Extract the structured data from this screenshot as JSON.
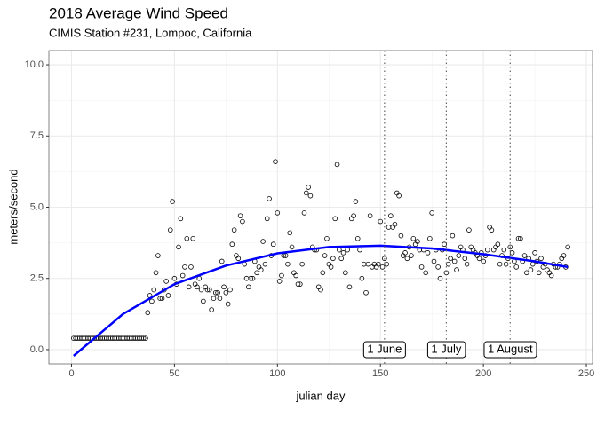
{
  "chart_data": {
    "type": "scatter",
    "title": "2018 Average Wind Speed",
    "subtitle": "CIMIS Station #231, Lompoc, California",
    "x_label": "julian day",
    "y_label": "meters/second",
    "xlim": [
      -11,
      253
    ],
    "xticks": [
      0,
      50,
      100,
      150,
      200,
      250
    ],
    "ylim": [
      -0.5,
      10.5
    ],
    "yticks": [
      {
        "value": 0,
        "label": "0.0"
      },
      2.5,
      {
        "value": 5,
        "label": "5.0"
      },
      7.5,
      {
        "value": 10,
        "label": "10.0"
      }
    ],
    "grid": true,
    "series": [
      {
        "kind": "points",
        "color": "#000000",
        "x": [
          1,
          2,
          3,
          4,
          5,
          6,
          7,
          8,
          9,
          10,
          11,
          12,
          13,
          14,
          15,
          16,
          17,
          18,
          19,
          20,
          21,
          22,
          23,
          24,
          25,
          26,
          27,
          28,
          29,
          30,
          31,
          32,
          33,
          34,
          35,
          36,
          37,
          38,
          39,
          40,
          41,
          42,
          43,
          44,
          45,
          46,
          47,
          48,
          49,
          50,
          51,
          52,
          53,
          54,
          55,
          56,
          57,
          58,
          59,
          60,
          61,
          62,
          63,
          64,
          65,
          66,
          67,
          68,
          69,
          70,
          71,
          72,
          73,
          74,
          75,
          76,
          77,
          78,
          79,
          80,
          81,
          82,
          83,
          84,
          85,
          86,
          87,
          88,
          89,
          90,
          91,
          92,
          93,
          94,
          95,
          96,
          97,
          98,
          99,
          100,
          101,
          102,
          103,
          104,
          105,
          106,
          107,
          108,
          109,
          110,
          111,
          112,
          113,
          114,
          115,
          116,
          117,
          118,
          119,
          120,
          121,
          122,
          123,
          124,
          125,
          126,
          127,
          128,
          129,
          130,
          131,
          132,
          133,
          134,
          135,
          136,
          137,
          138,
          139,
          140,
          141,
          142,
          143,
          144,
          145,
          146,
          147,
          148,
          149,
          150,
          151,
          152,
          153,
          154,
          155,
          156,
          157,
          158,
          159,
          160,
          161,
          162,
          163,
          164,
          165,
          166,
          167,
          168,
          169,
          170,
          171,
          172,
          173,
          174,
          175,
          176,
          177,
          178,
          179,
          180,
          181,
          182,
          183,
          184,
          185,
          186,
          187,
          188,
          189,
          190,
          191,
          192,
          193,
          194,
          195,
          196,
          197,
          198,
          199,
          200,
          201,
          202,
          203,
          204,
          205,
          206,
          207,
          208,
          209,
          210,
          211,
          212,
          213,
          214,
          215,
          216,
          217,
          218,
          219,
          220,
          221,
          222,
          223,
          224,
          225,
          226,
          227,
          228,
          229,
          230,
          231,
          232,
          233,
          234,
          235,
          236,
          237,
          238,
          239,
          240,
          241
        ],
        "values": [
          0.4,
          0.4,
          0.4,
          0.4,
          0.4,
          0.4,
          0.4,
          0.4,
          0.4,
          0.4,
          0.4,
          0.4,
          0.4,
          0.4,
          0.4,
          0.4,
          0.4,
          0.4,
          0.4,
          0.4,
          0.4,
          0.4,
          0.4,
          0.4,
          0.4,
          0.4,
          0.4,
          0.4,
          0.4,
          0.4,
          0.4,
          0.4,
          0.4,
          0.4,
          0.4,
          0.4,
          1.3,
          1.9,
          1.7,
          2.1,
          2.7,
          3.3,
          1.8,
          1.8,
          2.1,
          2.4,
          1.9,
          4.2,
          5.2,
          2.5,
          2.3,
          3.6,
          4.6,
          2.6,
          2.9,
          3.9,
          2.2,
          2.9,
          3.9,
          2.3,
          2.2,
          2.5,
          2.1,
          1.7,
          2.2,
          2.1,
          2.1,
          1.4,
          1.8,
          2.0,
          2.0,
          1.8,
          3.1,
          2.2,
          2.0,
          1.6,
          2.1,
          3.7,
          4.2,
          3.3,
          3.2,
          4.7,
          4.5,
          3.0,
          2.5,
          2.2,
          2.5,
          2.5,
          3.1,
          2.7,
          2.9,
          2.8,
          3.8,
          3.0,
          4.6,
          5.3,
          3.3,
          3.7,
          6.6,
          4.8,
          2.4,
          2.6,
          3.3,
          3.3,
          3.0,
          4.1,
          3.6,
          2.7,
          2.6,
          2.3,
          2.3,
          3.0,
          4.8,
          5.5,
          5.7,
          5.4,
          3.6,
          3.5,
          3.5,
          2.2,
          2.1,
          2.7,
          3.3,
          3.9,
          3.0,
          2.9,
          3.2,
          4.6,
          6.5,
          3.5,
          3.2,
          3.4,
          2.7,
          3.5,
          2.2,
          4.6,
          4.7,
          5.2,
          3.9,
          3.5,
          2.5,
          3.0,
          2.0,
          3.0,
          4.7,
          2.9,
          3.0,
          2.9,
          3.0,
          4.5,
          2.9,
          3.2,
          3.0,
          4.3,
          4.7,
          4.3,
          4.4,
          5.5,
          5.4,
          4.0,
          3.3,
          3.4,
          3.2,
          3.6,
          3.3,
          3.9,
          3.7,
          3.8,
          3.5,
          2.9,
          3.5,
          2.7,
          3.4,
          3.9,
          4.8,
          3.1,
          3.5,
          2.9,
          2.5,
          3.5,
          3.7,
          2.7,
          3.0,
          3.2,
          4.0,
          3.1,
          2.8,
          3.3,
          3.6,
          3.5,
          3.2,
          3.0,
          4.2,
          3.6,
          3.5,
          3.4,
          3.3,
          3.2,
          3.4,
          3.1,
          3.3,
          3.5,
          4.3,
          4.2,
          3.5,
          3.6,
          3.7,
          3.0,
          3.3,
          3.5,
          3.0,
          3.2,
          3.6,
          3.4,
          3.1,
          2.9,
          3.9,
          3.9,
          3.1,
          3.3,
          2.7,
          3.2,
          2.8,
          3.0,
          3.4,
          3.1,
          2.7,
          3.2,
          2.9,
          3.0,
          2.8,
          2.7,
          2.6,
          3.0,
          2.9,
          2.9,
          3.0,
          3.2,
          3.3,
          2.9,
          3.6
        ]
      },
      {
        "kind": "line",
        "color": "#0000ff",
        "x": [
          1,
          25,
          50,
          75,
          100,
          125,
          150,
          175,
          200,
          225,
          241
        ],
        "values": [
          -0.22,
          1.25,
          2.3,
          2.95,
          3.38,
          3.6,
          3.65,
          3.55,
          3.35,
          3.1,
          2.9
        ]
      }
    ],
    "annotations": [
      {
        "x": 152,
        "y": 0,
        "label": "1 June"
      },
      {
        "x": 182,
        "y": 0,
        "label": "1 July"
      },
      {
        "x": 213,
        "y": 0,
        "label": "1 August"
      }
    ]
  }
}
